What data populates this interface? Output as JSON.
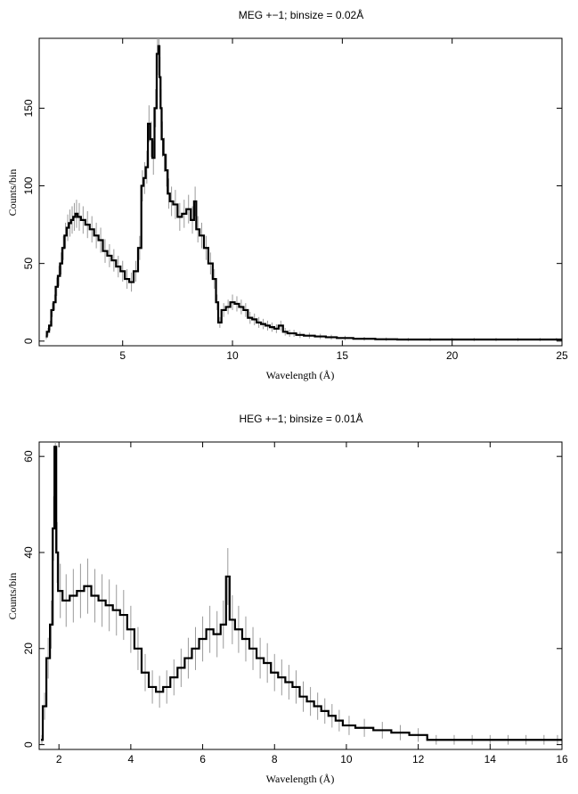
{
  "chart_data": [
    {
      "type": "line",
      "title": "MEG +−1; binsize = 0.02Å",
      "xlabel": "Wavelength (Å)",
      "ylabel": "Counts/bin",
      "xlim": [
        1.2,
        25
      ],
      "ylim": [
        -3,
        195
      ],
      "xticks": [
        5,
        10,
        15,
        20,
        25
      ],
      "yticks": [
        0,
        50,
        100,
        150
      ],
      "grid": false,
      "series": [
        {
          "style": "histogram-with-errorbars",
          "color": "#000000",
          "error_color": "#9a9a9a",
          "x": [
            1.5,
            1.6,
            1.7,
            1.8,
            1.9,
            2.0,
            2.1,
            2.2,
            2.3,
            2.4,
            2.5,
            2.6,
            2.7,
            2.8,
            2.9,
            3.0,
            3.2,
            3.4,
            3.6,
            3.8,
            4.0,
            4.2,
            4.4,
            4.6,
            4.8,
            5.0,
            5.2,
            5.4,
            5.6,
            5.8,
            5.9,
            6.0,
            6.1,
            6.2,
            6.3,
            6.4,
            6.5,
            6.6,
            6.65,
            6.7,
            6.75,
            6.8,
            6.9,
            7.0,
            7.1,
            7.2,
            7.4,
            7.6,
            7.8,
            8.0,
            8.2,
            8.3,
            8.4,
            8.6,
            8.8,
            9.0,
            9.2,
            9.3,
            9.4,
            9.6,
            9.8,
            10.0,
            10.2,
            10.4,
            10.6,
            10.8,
            11.0,
            11.2,
            11.4,
            11.6,
            11.8,
            12.0,
            12.2,
            12.4,
            12.6,
            12.8,
            13.0,
            13.5,
            14.0,
            14.5,
            15.0,
            16.0,
            17.0,
            18.0,
            19.0,
            20.0,
            21.0,
            22.0,
            23.0,
            24.0,
            25.0
          ],
          "y": [
            3,
            6,
            10,
            20,
            25,
            35,
            42,
            50,
            60,
            68,
            73,
            76,
            78,
            80,
            82,
            80,
            78,
            75,
            72,
            68,
            65,
            58,
            55,
            52,
            48,
            45,
            40,
            38,
            45,
            60,
            100,
            105,
            112,
            140,
            130,
            118,
            150,
            185,
            190,
            170,
            150,
            130,
            120,
            110,
            95,
            90,
            88,
            80,
            82,
            85,
            78,
            90,
            72,
            68,
            60,
            50,
            40,
            25,
            12,
            20,
            22,
            25,
            24,
            22,
            20,
            15,
            14,
            12,
            11,
            10,
            9,
            8,
            10,
            6,
            5,
            5,
            4,
            3.5,
            3,
            2.5,
            2,
            1.5,
            1.2,
            1,
            1,
            1,
            1,
            1,
            1,
            1,
            1
          ]
        }
      ]
    },
    {
      "type": "line",
      "title": "HEG +−1; binsize = 0.01Å",
      "xlabel": "Wavelength (Å)",
      "ylabel": "Counts/bin",
      "xlim": [
        1.45,
        16
      ],
      "ylim": [
        -1,
        63
      ],
      "xticks": [
        2,
        4,
        6,
        8,
        10,
        12,
        14,
        16
      ],
      "yticks": [
        0,
        20,
        40,
        60
      ],
      "grid": false,
      "series": [
        {
          "style": "histogram-with-errorbars",
          "color": "#000000",
          "error_color": "#9a9a9a",
          "x": [
            1.5,
            1.6,
            1.7,
            1.8,
            1.85,
            1.9,
            1.95,
            2.0,
            2.2,
            2.4,
            2.6,
            2.8,
            3.0,
            3.2,
            3.4,
            3.6,
            3.8,
            4.0,
            4.2,
            4.4,
            4.6,
            4.8,
            5.0,
            5.2,
            5.4,
            5.6,
            5.8,
            6.0,
            6.2,
            6.4,
            6.6,
            6.7,
            6.8,
            7.0,
            7.2,
            7.4,
            7.6,
            7.8,
            8.0,
            8.2,
            8.4,
            8.6,
            8.8,
            9.0,
            9.2,
            9.4,
            9.6,
            9.8,
            10.0,
            10.5,
            11.0,
            11.5,
            12.0,
            12.5,
            13.0,
            13.5,
            14.0,
            14.5,
            15.0,
            15.5,
            16.0
          ],
          "y": [
            1,
            8,
            18,
            25,
            45,
            62,
            40,
            32,
            30,
            31,
            32,
            33,
            31,
            30,
            29,
            28,
            27,
            24,
            20,
            15,
            12,
            11,
            12,
            14,
            16,
            18,
            20,
            22,
            24,
            23,
            25,
            35,
            26,
            24,
            22,
            20,
            18,
            17,
            15,
            14,
            13,
            12,
            10,
            9,
            8,
            7,
            6,
            5,
            4,
            3.5,
            3,
            2.5,
            2,
            1,
            1,
            1,
            1,
            1,
            1,
            1,
            1
          ]
        }
      ]
    }
  ]
}
